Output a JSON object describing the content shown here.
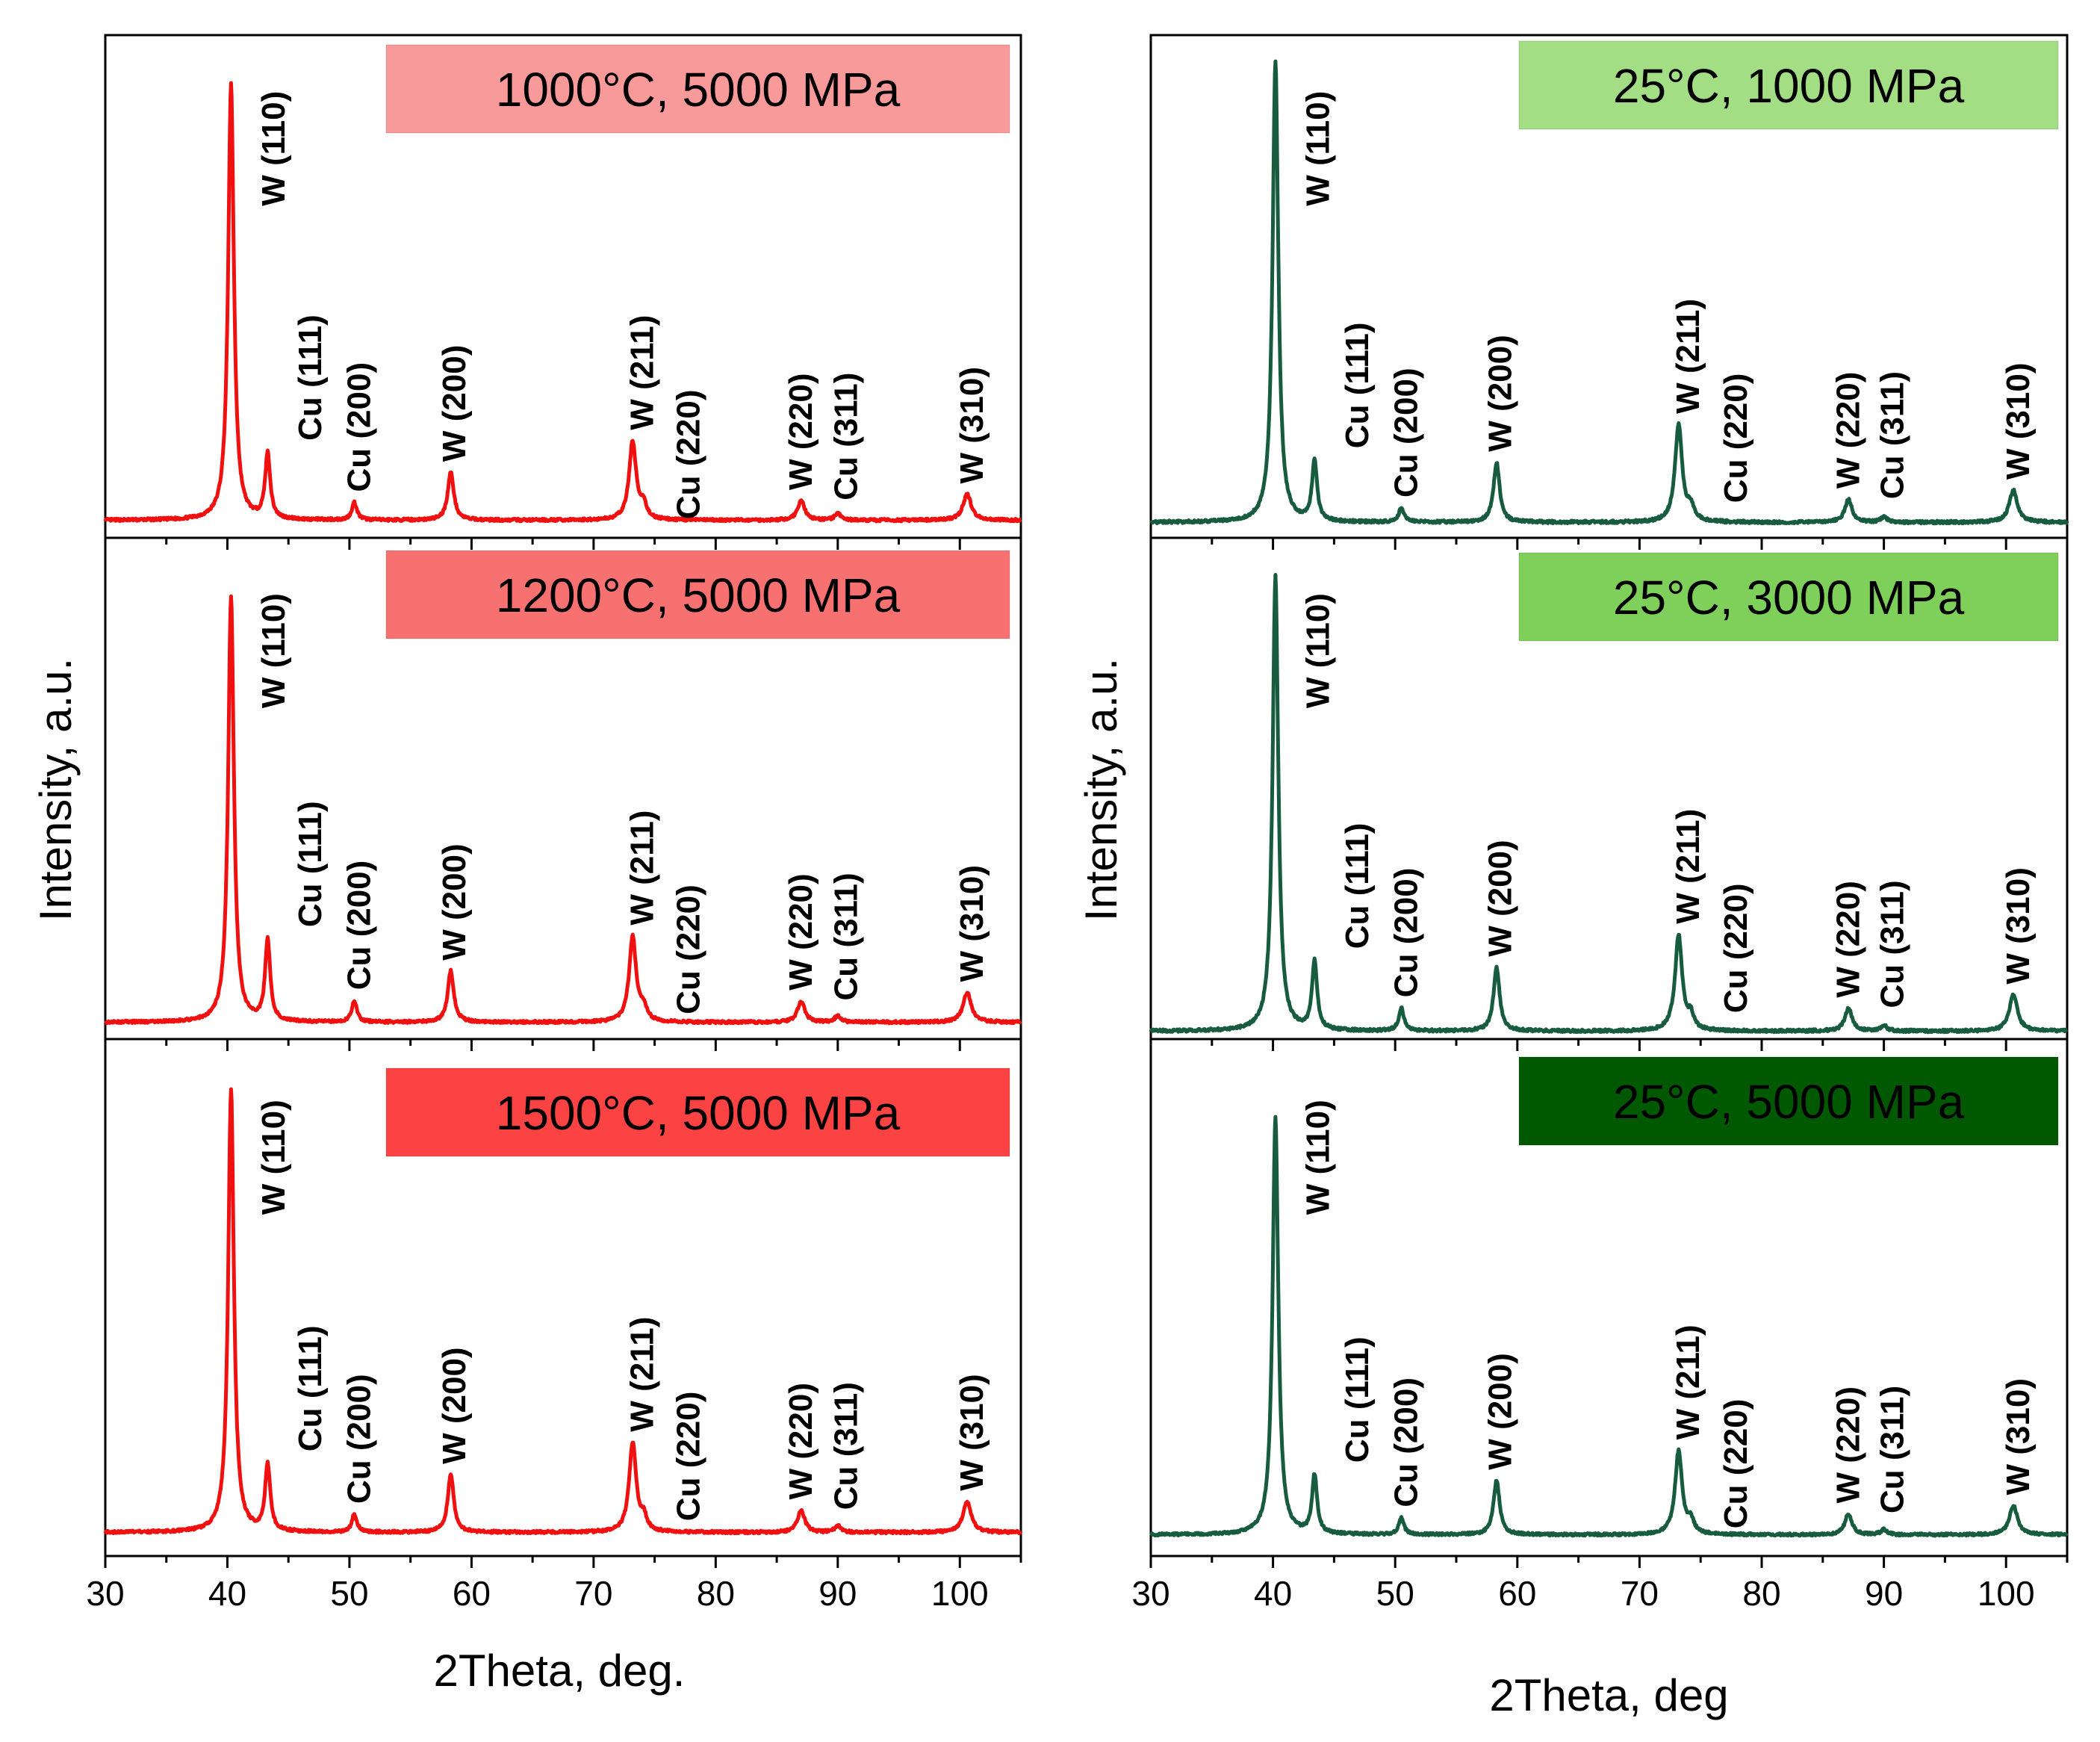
{
  "colors": {
    "left_series": "#f01010",
    "right_series": "#175c3e",
    "frame": "#000000"
  },
  "chart_data": [
    {
      "type": "line",
      "panel": "left-1",
      "title": "1000°C, 5000 MPa",
      "title_bg": "#f99a9a",
      "xlabel": "2Theta, deg.",
      "ylabel": "Intensity, a.u.",
      "xlim": [
        30,
        105
      ],
      "xticks": [
        "30",
        "40",
        "50",
        "60",
        "70",
        "80",
        "90",
        "100"
      ],
      "peaks": [
        {
          "x": 40.3,
          "h": 1.0,
          "w": 0.28
        },
        {
          "x": 43.3,
          "h": 0.15,
          "w": 0.25
        },
        {
          "x": 50.4,
          "h": 0.04,
          "w": 0.25
        },
        {
          "x": 58.3,
          "h": 0.11,
          "w": 0.3
        },
        {
          "x": 73.2,
          "h": 0.18,
          "w": 0.35
        },
        {
          "x": 74.1,
          "h": 0.03,
          "w": 0.3
        },
        {
          "x": 87.0,
          "h": 0.045,
          "w": 0.35
        },
        {
          "x": 90.0,
          "h": 0.015,
          "w": 0.3
        },
        {
          "x": 100.6,
          "h": 0.06,
          "w": 0.4
        }
      ],
      "annotations": [
        "W (110)",
        "Cu (111)",
        "Cu (200)",
        "W (200)",
        "W (211)",
        "Cu (220)",
        "W (220)",
        "Cu (311)",
        "W (310)"
      ]
    },
    {
      "type": "line",
      "panel": "left-2",
      "title": "1200°C, 5000 MPa",
      "title_bg": "#f87171",
      "xlabel": "2Theta, deg.",
      "ylabel": "Intensity, a.u.",
      "xlim": [
        30,
        105
      ],
      "xticks": [
        "30",
        "40",
        "50",
        "60",
        "70",
        "80",
        "90",
        "100"
      ],
      "peaks": [
        {
          "x": 40.3,
          "h": 1.0,
          "w": 0.28
        },
        {
          "x": 43.3,
          "h": 0.19,
          "w": 0.25
        },
        {
          "x": 50.4,
          "h": 0.05,
          "w": 0.25
        },
        {
          "x": 58.3,
          "h": 0.12,
          "w": 0.3
        },
        {
          "x": 73.2,
          "h": 0.2,
          "w": 0.35
        },
        {
          "x": 74.1,
          "h": 0.03,
          "w": 0.3
        },
        {
          "x": 87.0,
          "h": 0.05,
          "w": 0.35
        },
        {
          "x": 90.0,
          "h": 0.015,
          "w": 0.3
        },
        {
          "x": 100.6,
          "h": 0.07,
          "w": 0.4
        }
      ],
      "annotations": [
        "W (110)",
        "Cu (111)",
        "Cu (200)",
        "W (200)",
        "W (211)",
        "Cu (220)",
        "W (220)",
        "Cu (311)",
        "W (310)"
      ]
    },
    {
      "type": "line",
      "panel": "left-3",
      "title": "1500°C, 5000 MPa",
      "title_bg": "#fb4343",
      "xlabel": "2Theta, deg.",
      "ylabel": "Intensity, a.u.",
      "xlim": [
        30,
        105
      ],
      "xticks": [
        "30",
        "40",
        "50",
        "60",
        "70",
        "80",
        "90",
        "100"
      ],
      "peaks": [
        {
          "x": 40.3,
          "h": 1.0,
          "w": 0.28
        },
        {
          "x": 43.3,
          "h": 0.15,
          "w": 0.25
        },
        {
          "x": 50.4,
          "h": 0.04,
          "w": 0.25
        },
        {
          "x": 58.3,
          "h": 0.13,
          "w": 0.3
        },
        {
          "x": 73.2,
          "h": 0.2,
          "w": 0.35
        },
        {
          "x": 74.1,
          "h": 0.03,
          "w": 0.3
        },
        {
          "x": 87.0,
          "h": 0.05,
          "w": 0.35
        },
        {
          "x": 90.0,
          "h": 0.015,
          "w": 0.3
        },
        {
          "x": 100.6,
          "h": 0.07,
          "w": 0.4
        }
      ],
      "annotations": [
        "W (110)",
        "Cu (111)",
        "Cu (200)",
        "W (200)",
        "W (211)",
        "Cu (220)",
        "W (220)",
        "Cu (311)",
        "W (310)"
      ]
    },
    {
      "type": "line",
      "panel": "right-1",
      "title": "25°C, 1000 MPa",
      "title_bg": "#a3de84",
      "xlabel": "2Theta, deg",
      "ylabel": "Intensity, a.u.",
      "xlim": [
        30,
        105
      ],
      "xticks": [
        "30",
        "40",
        "50",
        "60",
        "70",
        "80",
        "90",
        "100"
      ],
      "peaks": [
        {
          "x": 40.2,
          "h": 1.0,
          "w": 0.28
        },
        {
          "x": 43.4,
          "h": 0.13,
          "w": 0.25
        },
        {
          "x": 50.5,
          "h": 0.03,
          "w": 0.25
        },
        {
          "x": 58.3,
          "h": 0.13,
          "w": 0.3
        },
        {
          "x": 73.2,
          "h": 0.21,
          "w": 0.35
        },
        {
          "x": 74.2,
          "h": 0.03,
          "w": 0.3
        },
        {
          "x": 87.1,
          "h": 0.05,
          "w": 0.35
        },
        {
          "x": 90.0,
          "h": 0.012,
          "w": 0.3
        },
        {
          "x": 100.6,
          "h": 0.07,
          "w": 0.4
        }
      ],
      "annotations": [
        "W (110)",
        "Cu (111)",
        "Cu (200)",
        "W (200)",
        "W (211)",
        "Cu (220)",
        "W (220)",
        "Cu (311)",
        "W (310)"
      ]
    },
    {
      "type": "line",
      "panel": "right-2",
      "title": "25°C, 3000 MPa",
      "title_bg": "#7ed05a",
      "xlabel": "2Theta, deg",
      "ylabel": "Intensity, a.u.",
      "xlim": [
        30,
        105
      ],
      "xticks": [
        "30",
        "40",
        "50",
        "60",
        "70",
        "80",
        "90",
        "100"
      ],
      "peaks": [
        {
          "x": 40.2,
          "h": 1.0,
          "w": 0.28
        },
        {
          "x": 43.4,
          "h": 0.15,
          "w": 0.25
        },
        {
          "x": 50.5,
          "h": 0.05,
          "w": 0.25
        },
        {
          "x": 58.3,
          "h": 0.14,
          "w": 0.3
        },
        {
          "x": 73.2,
          "h": 0.21,
          "w": 0.35
        },
        {
          "x": 74.2,
          "h": 0.03,
          "w": 0.3
        },
        {
          "x": 87.1,
          "h": 0.05,
          "w": 0.35
        },
        {
          "x": 90.0,
          "h": 0.012,
          "w": 0.3
        },
        {
          "x": 100.6,
          "h": 0.08,
          "w": 0.4
        }
      ],
      "annotations": [
        "W (110)",
        "Cu (111)",
        "Cu (200)",
        "W (200)",
        "W (211)",
        "Cu (220)",
        "W (220)",
        "Cu (311)",
        "W (310)"
      ]
    },
    {
      "type": "line",
      "panel": "right-3",
      "title": "25°C, 5000 MPa",
      "title_bg": "#005800",
      "xlabel": "2Theta, deg",
      "ylabel": "Intensity, a.u.",
      "xlim": [
        30,
        105
      ],
      "xticks": [
        "30",
        "40",
        "50",
        "60",
        "70",
        "80",
        "90",
        "100"
      ],
      "peaks": [
        {
          "x": 40.2,
          "h": 1.0,
          "w": 0.28
        },
        {
          "x": 43.4,
          "h": 0.14,
          "w": 0.25
        },
        {
          "x": 50.5,
          "h": 0.04,
          "w": 0.25
        },
        {
          "x": 58.3,
          "h": 0.13,
          "w": 0.3
        },
        {
          "x": 73.2,
          "h": 0.2,
          "w": 0.35
        },
        {
          "x": 74.2,
          "h": 0.03,
          "w": 0.3
        },
        {
          "x": 87.1,
          "h": 0.05,
          "w": 0.35
        },
        {
          "x": 90.0,
          "h": 0.012,
          "w": 0.3
        },
        {
          "x": 100.6,
          "h": 0.07,
          "w": 0.4
        }
      ],
      "annotations": [
        "W (110)",
        "Cu (111)",
        "Cu (200)",
        "W (200)",
        "W (211)",
        "Cu (220)",
        "W (220)",
        "Cu (311)",
        "W (310)"
      ]
    }
  ]
}
